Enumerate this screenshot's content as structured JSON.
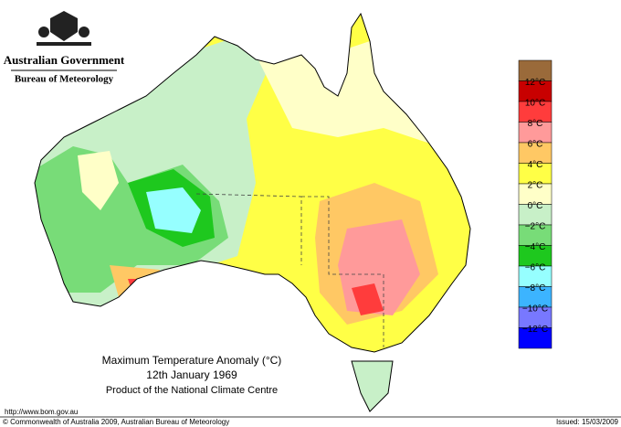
{
  "header": {
    "government": "Australian Government",
    "agency": "Bureau of Meteorology"
  },
  "map": {
    "title": "Maximum Temperature Anomaly (°C)",
    "date": "12th January 1969",
    "product": "Product of the National Climate Centre"
  },
  "legend": {
    "labels": [
      "12°C",
      "10°C",
      "8°C",
      "6°C",
      "4°C",
      "2°C",
      "0°C",
      "−2°C",
      "−4°C",
      "−6°C",
      "−8°C",
      "−10°C",
      "−12°C"
    ],
    "colors": [
      "#9a6a3a",
      "#c80000",
      "#ff3c3c",
      "#ff9a9a",
      "#ffc864",
      "#ffff46",
      "#ffffc8",
      "#c8f0c8",
      "#78dc78",
      "#1ec81e",
      "#96ffff",
      "#3cb4ff",
      "#7878ff",
      "#0000ff"
    ]
  },
  "footer": {
    "url": "http://www.bom.gov.au",
    "copyright": "© Commonwealth of Australia 2009, Australian Bureau of Meteorology",
    "issued": "Issued: 15/03/2009"
  }
}
